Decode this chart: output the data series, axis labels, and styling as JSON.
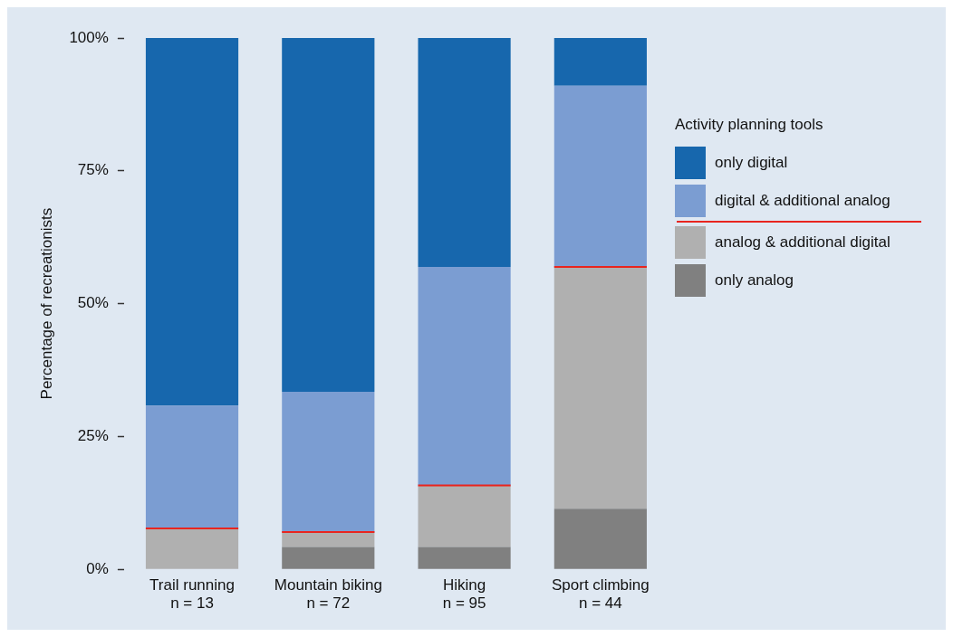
{
  "chart_data": {
    "type": "bar",
    "stacked": true,
    "ylabel": "Percentage of recreationists",
    "legend_title": "Activity planning tools",
    "legend": "right",
    "categories": [
      "Trail running\nn = 13",
      "Mountain biking\nn = 72",
      "Hiking\nn = 95",
      "Sport climbing\nn = 44"
    ],
    "series": [
      {
        "name": "only analog",
        "color": "#808080",
        "values": [
          0,
          4.2,
          4.2,
          11.4
        ]
      },
      {
        "name": "analog & additional digital",
        "color": "#b0b0b0",
        "values": [
          7.7,
          2.8,
          11.6,
          45.5
        ]
      },
      {
        "name": "digital & additional analog",
        "color": "#7b9dd2",
        "values": [
          23.1,
          26.4,
          41.1,
          34.1
        ]
      },
      {
        "name": "only digital",
        "color": "#1767ad",
        "values": [
          69.2,
          66.7,
          43.2,
          9.1
        ]
      }
    ],
    "ylim": [
      0,
      100
    ],
    "yticks": [
      {
        "value": 0,
        "label": "0%"
      },
      {
        "value": 25,
        "label": "25%"
      },
      {
        "value": 50,
        "label": "50%"
      },
      {
        "value": 75,
        "label": "75%"
      },
      {
        "value": 100,
        "label": "100%"
      }
    ],
    "grid": false
  }
}
